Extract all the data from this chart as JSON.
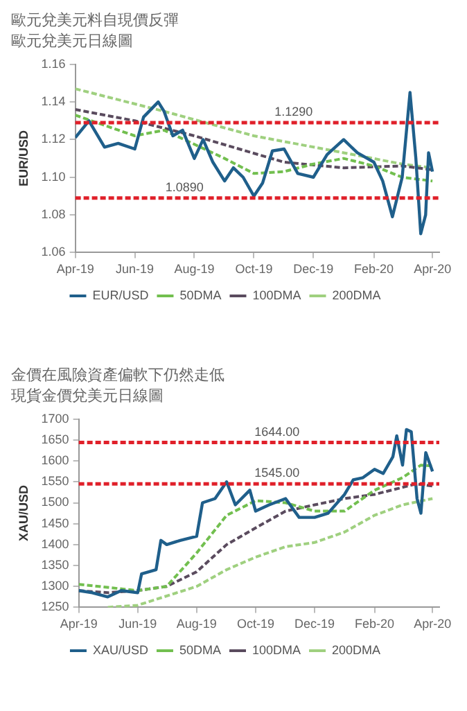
{
  "chart_data": [
    {
      "type": "line",
      "title": "歐元兌美元料自現價反彈",
      "subtitle": "歐元兌美元日線圖",
      "ylabel": "EUR/USD",
      "legend": "bottom",
      "grid": false,
      "marker": "none",
      "xlim": [
        "2019-04-01",
        "2020-04-08"
      ],
      "ylim": [
        1.06,
        1.16
      ],
      "yticks": [
        {
          "value": 1.06,
          "label": "1.06"
        },
        {
          "value": 1.08,
          "label": "1.08"
        },
        {
          "value": 1.1,
          "label": "1.10"
        },
        {
          "value": 1.12,
          "label": "1.12"
        },
        {
          "value": 1.14,
          "label": "1.14"
        },
        {
          "value": 1.16,
          "label": "1.16"
        }
      ],
      "xticks": [
        {
          "value": "2019-04-01",
          "label": "Apr-19"
        },
        {
          "value": "2019-06-01",
          "label": "Jun-19"
        },
        {
          "value": "2019-08-01",
          "label": "Aug-19"
        },
        {
          "value": "2019-10-01",
          "label": "Oct-19"
        },
        {
          "value": "2019-12-01",
          "label": "Dec-19"
        },
        {
          "value": "2020-02-01",
          "label": "Feb-20"
        },
        {
          "value": "2020-04-01",
          "label": "Apr-20"
        }
      ],
      "series": [
        {
          "name": "EUR/USD",
          "color": "#1f5f8b",
          "line_style": "solid",
          "x": [
            "2019-04-01",
            "2019-04-15",
            "2019-05-01",
            "2019-05-15",
            "2019-06-01",
            "2019-06-10",
            "2019-06-25",
            "2019-07-01",
            "2019-07-10",
            "2019-07-20",
            "2019-08-01",
            "2019-08-10",
            "2019-08-20",
            "2019-09-01",
            "2019-09-10",
            "2019-09-20",
            "2019-10-01",
            "2019-10-10",
            "2019-10-20",
            "2019-11-01",
            "2019-11-15",
            "2019-12-01",
            "2019-12-15",
            "2020-01-01",
            "2020-01-15",
            "2020-02-01",
            "2020-02-10",
            "2020-02-20",
            "2020-03-01",
            "2020-03-09",
            "2020-03-15",
            "2020-03-20",
            "2020-03-25",
            "2020-03-28",
            "2020-04-01"
          ],
          "values": [
            1.121,
            1.13,
            1.116,
            1.118,
            1.115,
            1.132,
            1.14,
            1.135,
            1.122,
            1.125,
            1.11,
            1.12,
            1.108,
            1.098,
            1.105,
            1.1,
            1.09,
            1.097,
            1.114,
            1.115,
            1.102,
            1.1,
            1.112,
            1.12,
            1.113,
            1.108,
            1.098,
            1.079,
            1.1,
            1.145,
            1.11,
            1.07,
            1.08,
            1.113,
            1.103
          ]
        },
        {
          "name": "50DMA",
          "color": "#72bf4f",
          "line_style": "dashed",
          "x": [
            "2019-04-01",
            "2019-06-01",
            "2019-07-01",
            "2019-09-01",
            "2019-10-01",
            "2019-11-01",
            "2019-12-01",
            "2020-01-01",
            "2020-02-01",
            "2020-03-01",
            "2020-04-01"
          ],
          "values": [
            1.133,
            1.122,
            1.125,
            1.11,
            1.102,
            1.103,
            1.107,
            1.11,
            1.106,
            1.1,
            1.098
          ]
        },
        {
          "name": "100DMA",
          "color": "#5a4b5e",
          "line_style": "dashed",
          "x": [
            "2019-04-01",
            "2019-06-01",
            "2019-08-01",
            "2019-11-01",
            "2020-01-01",
            "2020-03-01",
            "2020-04-01"
          ],
          "values": [
            1.136,
            1.13,
            1.122,
            1.108,
            1.105,
            1.106,
            1.104
          ]
        },
        {
          "name": "200DMA",
          "color": "#9fd07f",
          "line_style": "dashed",
          "x": [
            "2019-04-01",
            "2019-07-01",
            "2019-10-01",
            "2020-01-01",
            "2020-03-01",
            "2020-04-01"
          ],
          "values": [
            1.147,
            1.135,
            1.122,
            1.113,
            1.107,
            1.105
          ]
        }
      ],
      "ref_lines": [
        {
          "axis": "y",
          "value": 1.129,
          "label": "1.1290",
          "color": "#e0202a",
          "line_style": "dashed"
        },
        {
          "axis": "y",
          "value": 1.089,
          "label": "1.0890",
          "color": "#e0202a",
          "line_style": "dashed"
        }
      ]
    },
    {
      "type": "line",
      "title": "金價在風險資產偏軟下仍然走低",
      "subtitle": "現貨金價兌美元日線圖",
      "ylabel": "XAU/USD",
      "legend": "bottom",
      "grid": false,
      "marker": "none",
      "xlim": [
        "2019-04-01",
        "2020-04-08"
      ],
      "ylim": [
        1250,
        1700
      ],
      "yticks": [
        1250,
        1300,
        1350,
        1400,
        1450,
        1500,
        1550,
        1600,
        1650,
        1700
      ],
      "xticks": [
        {
          "value": "2019-04-01",
          "label": "Apr-19"
        },
        {
          "value": "2019-06-01",
          "label": "Jun-19"
        },
        {
          "value": "2019-08-01",
          "label": "Aug-19"
        },
        {
          "value": "2019-10-01",
          "label": "Oct-19"
        },
        {
          "value": "2019-12-01",
          "label": "Dec-19"
        },
        {
          "value": "2020-02-01",
          "label": "Feb-20"
        },
        {
          "value": "2020-04-01",
          "label": "Apr-20"
        }
      ],
      "series": [
        {
          "name": "XAU/USD",
          "color": "#1f5f8b",
          "line_style": "solid",
          "x": [
            "2019-04-01",
            "2019-04-15",
            "2019-05-01",
            "2019-05-15",
            "2019-06-01",
            "2019-06-05",
            "2019-06-20",
            "2019-06-25",
            "2019-07-01",
            "2019-07-15",
            "2019-08-01",
            "2019-08-07",
            "2019-08-20",
            "2019-09-01",
            "2019-09-10",
            "2019-09-25",
            "2019-10-01",
            "2019-10-15",
            "2019-11-01",
            "2019-11-15",
            "2019-12-01",
            "2019-12-15",
            "2020-01-01",
            "2020-01-10",
            "2020-01-20",
            "2020-02-01",
            "2020-02-10",
            "2020-02-20",
            "2020-02-24",
            "2020-03-01",
            "2020-03-05",
            "2020-03-10",
            "2020-03-16",
            "2020-03-20",
            "2020-03-25",
            "2020-04-01"
          ],
          "values": [
            1290,
            1285,
            1275,
            1290,
            1285,
            1330,
            1340,
            1410,
            1400,
            1410,
            1420,
            1500,
            1510,
            1550,
            1495,
            1530,
            1480,
            1495,
            1510,
            1465,
            1465,
            1475,
            1520,
            1555,
            1560,
            1580,
            1570,
            1610,
            1660,
            1590,
            1675,
            1670,
            1510,
            1475,
            1620,
            1575
          ]
        },
        {
          "name": "50DMA",
          "color": "#72bf4f",
          "line_style": "dashed",
          "x": [
            "2019-04-01",
            "2019-06-01",
            "2019-07-01",
            "2019-08-01",
            "2019-09-01",
            "2019-10-01",
            "2019-11-01",
            "2019-12-01",
            "2020-01-01",
            "2020-02-01",
            "2020-03-01",
            "2020-03-20",
            "2020-04-01"
          ],
          "values": [
            1305,
            1290,
            1300,
            1380,
            1470,
            1505,
            1500,
            1480,
            1480,
            1530,
            1560,
            1590,
            1588
          ]
        },
        {
          "name": "100DMA",
          "color": "#5a4b5e",
          "line_style": "dashed",
          "x": [
            "2019-04-01",
            "2019-05-01",
            "2019-06-01",
            "2019-07-01",
            "2019-08-01",
            "2019-09-01",
            "2019-10-01",
            "2019-11-01",
            "2019-12-01",
            "2020-01-01",
            "2020-02-01",
            "2020-03-15",
            "2020-04-01"
          ],
          "values": [
            1290,
            1285,
            1290,
            1300,
            1335,
            1400,
            1440,
            1480,
            1495,
            1510,
            1520,
            1545,
            1540
          ]
        },
        {
          "name": "200DMA",
          "color": "#9fd07f",
          "line_style": "dashed",
          "x": [
            "2019-05-01",
            "2019-06-01",
            "2019-08-01",
            "2019-09-01",
            "2019-10-01",
            "2019-11-01",
            "2019-12-01",
            "2020-01-01",
            "2020-02-01",
            "2020-03-01",
            "2020-04-01"
          ],
          "values": [
            1250,
            1255,
            1300,
            1340,
            1370,
            1395,
            1405,
            1430,
            1470,
            1495,
            1510
          ]
        }
      ],
      "ref_lines": [
        {
          "axis": "y",
          "value": 1644,
          "label": "1644.00",
          "color": "#e0202a",
          "line_style": "dashed"
        },
        {
          "axis": "y",
          "value": 1545,
          "label": "1545.00",
          "color": "#e0202a",
          "line_style": "dashed"
        }
      ]
    }
  ]
}
